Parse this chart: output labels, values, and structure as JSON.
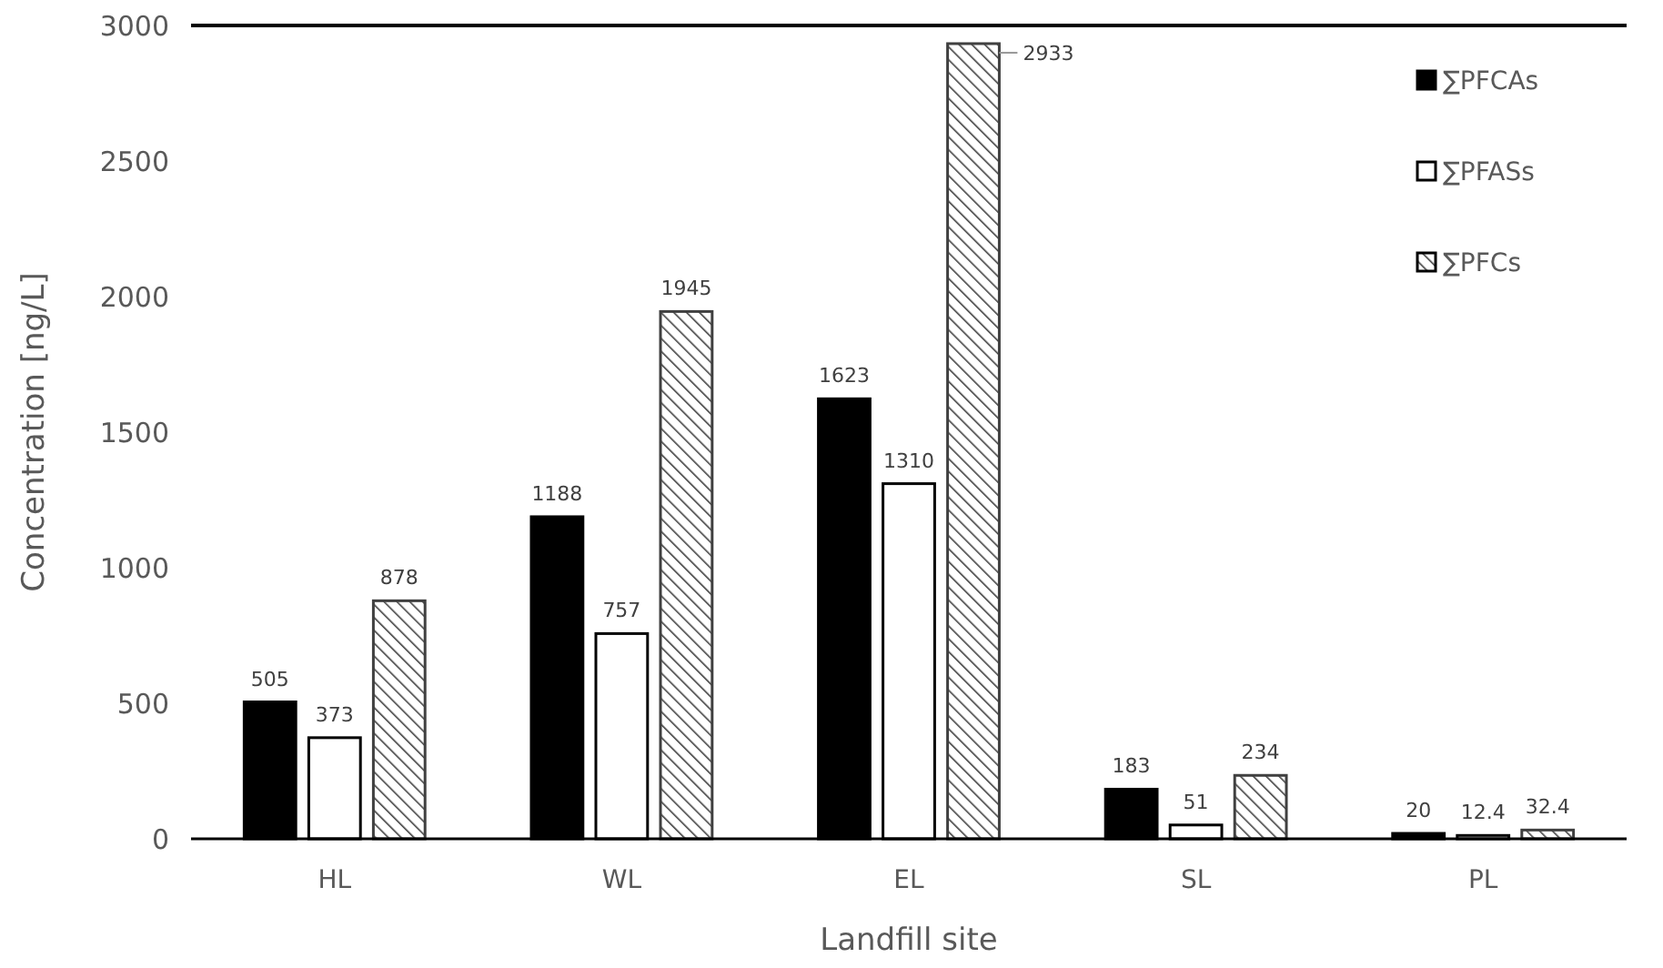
{
  "chart_data": {
    "type": "bar",
    "xlabel": "Landfill site",
    "ylabel": "Concentration [ng/L]",
    "categories": [
      "HL",
      "WL",
      "EL",
      "SL",
      "PL"
    ],
    "series": [
      {
        "name": "∑PFCAs",
        "color": "#000000",
        "values": [
          505,
          1188,
          1623,
          183,
          20
        ]
      },
      {
        "name": "∑PFASs",
        "color": "#ffffff",
        "values": [
          373,
          757,
          1310,
          51,
          12.4
        ]
      },
      {
        "name": "∑PFCs",
        "color": "#404040",
        "values": [
          878,
          1945,
          2933,
          234,
          32.4
        ]
      }
    ],
    "ylim": [
      0,
      3000
    ],
    "yticks": [
      0,
      500,
      1000,
      1500,
      2000,
      2500,
      3000
    ],
    "data_labels": true,
    "legend": "top right",
    "grid": false
  }
}
